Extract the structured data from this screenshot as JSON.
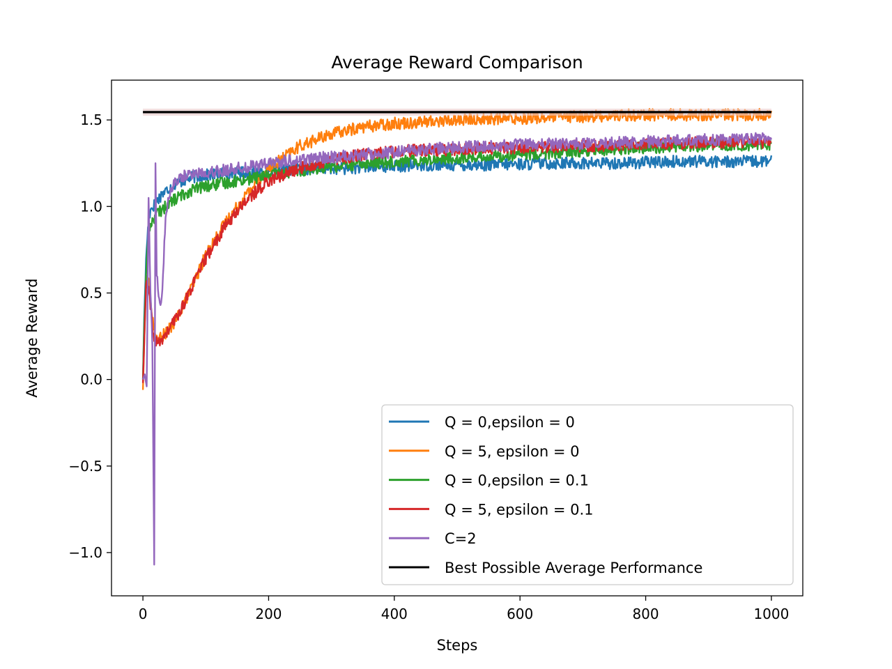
{
  "chart_data": {
    "type": "line",
    "title": "Average Reward Comparison",
    "xlabel": "Steps",
    "ylabel": "Average Reward",
    "xlim": [
      -50,
      1050
    ],
    "ylim": [
      -1.25,
      1.73
    ],
    "xticks": [
      0,
      200,
      400,
      600,
      800,
      1000
    ],
    "yticks": [
      -1.0,
      -0.5,
      0.0,
      0.5,
      1.0,
      1.5
    ],
    "xtick_labels": [
      "0",
      "200",
      "400",
      "600",
      "800",
      "1000"
    ],
    "ytick_labels": [
      "−1.0",
      "−0.5",
      "0.0",
      "0.5",
      "1.0",
      "1.5"
    ],
    "grid": false,
    "legend_position": "lower-right",
    "series": [
      {
        "name": "Q = 0,epsilon = 0",
        "color": "#1f77b4",
        "x": [
          0,
          2,
          5,
          8,
          12,
          20,
          30,
          50,
          80,
          120,
          170,
          220,
          270,
          320,
          380,
          450,
          550,
          650,
          750,
          850,
          950,
          1000
        ],
        "y": [
          0.0,
          0.35,
          0.7,
          0.88,
          0.98,
          1.02,
          1.07,
          1.13,
          1.17,
          1.19,
          1.2,
          1.21,
          1.22,
          1.22,
          1.23,
          1.24,
          1.24,
          1.25,
          1.25,
          1.26,
          1.26,
          1.26
        ]
      },
      {
        "name": "Q = 5, epsilon = 0",
        "color": "#ff7f0e",
        "x": [
          0,
          2,
          5,
          10,
          15,
          20,
          25,
          30,
          40,
          50,
          60,
          80,
          100,
          130,
          160,
          200,
          250,
          300,
          350,
          400,
          500,
          600,
          700,
          800,
          900,
          1000
        ],
        "y": [
          -0.06,
          0.2,
          0.6,
          0.55,
          0.35,
          0.25,
          0.24,
          0.25,
          0.28,
          0.33,
          0.4,
          0.55,
          0.72,
          0.9,
          1.05,
          1.22,
          1.35,
          1.42,
          1.46,
          1.48,
          1.5,
          1.51,
          1.52,
          1.53,
          1.53,
          1.53
        ]
      },
      {
        "name": "Q = 0,epsilon = 0.1",
        "color": "#2ca02c",
        "x": [
          0,
          2,
          5,
          8,
          12,
          20,
          30,
          50,
          80,
          120,
          170,
          220,
          270,
          330,
          400,
          500,
          600,
          700,
          800,
          900,
          1000
        ],
        "y": [
          0.0,
          0.3,
          0.6,
          0.8,
          0.9,
          0.95,
          0.98,
          1.04,
          1.1,
          1.13,
          1.16,
          1.19,
          1.22,
          1.24,
          1.26,
          1.28,
          1.3,
          1.32,
          1.34,
          1.35,
          1.36
        ]
      },
      {
        "name": "Q = 5, epsilon = 0.1",
        "color": "#d62728",
        "x": [
          0,
          2,
          5,
          10,
          15,
          20,
          25,
          30,
          40,
          50,
          60,
          80,
          100,
          130,
          160,
          200,
          250,
          300,
          350,
          400,
          500,
          600,
          700,
          800,
          900,
          1000
        ],
        "y": [
          -0.02,
          0.2,
          0.55,
          0.5,
          0.3,
          0.22,
          0.21,
          0.23,
          0.28,
          0.34,
          0.4,
          0.55,
          0.7,
          0.88,
          1.02,
          1.15,
          1.22,
          1.27,
          1.3,
          1.32,
          1.33,
          1.34,
          1.35,
          1.36,
          1.37,
          1.37
        ]
      },
      {
        "name": "C=2",
        "color": "#9467bd",
        "x": [
          0,
          3,
          6,
          9,
          12,
          15,
          18,
          20,
          22,
          25,
          28,
          31,
          34,
          37,
          40,
          45,
          50,
          60,
          80,
          100,
          130,
          170,
          220,
          280,
          350,
          450,
          550,
          650,
          750,
          850,
          950,
          1000
        ],
        "y": [
          0.0,
          0.03,
          -0.04,
          1.05,
          0.5,
          0.2,
          -1.07,
          1.25,
          0.6,
          0.48,
          0.43,
          0.52,
          0.8,
          0.96,
          1.05,
          1.1,
          1.14,
          1.17,
          1.19,
          1.2,
          1.21,
          1.23,
          1.26,
          1.28,
          1.3,
          1.33,
          1.35,
          1.36,
          1.37,
          1.38,
          1.39,
          1.4
        ]
      },
      {
        "name": "Best Possible Average Performance",
        "color": "#000000",
        "x": [
          0,
          1000
        ],
        "y": [
          1.545,
          1.545
        ]
      }
    ]
  }
}
